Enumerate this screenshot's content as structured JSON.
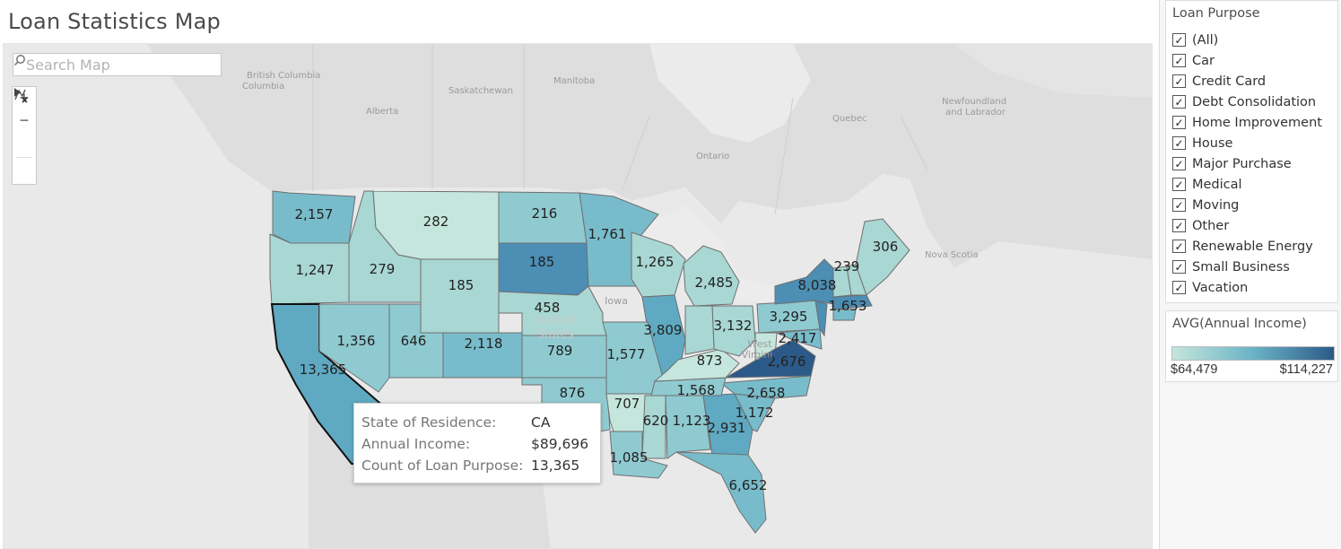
{
  "title": "Loan Statistics Map",
  "search": {
    "placeholder": "Search Map"
  },
  "map_tools": [
    {
      "name": "zoom-in-icon",
      "glyph": "+"
    },
    {
      "name": "zoom-out-icon",
      "glyph": "−"
    },
    {
      "name": "reset-map-icon",
      "glyph": "⌖"
    },
    {
      "name": "expand-toolbar-icon",
      "glyph": "▸"
    }
  ],
  "basemap_labels": [
    "British Columbia",
    "Alberta",
    "Saskatchewan",
    "Manitoba",
    "Ontario",
    "Quebec",
    "Newfoundland and Labrador",
    "Nova Scotia",
    "Iowa",
    "United States",
    "West Virginia"
  ],
  "states": [
    {
      "state": "WA",
      "count": 2157,
      "label": "2,157"
    },
    {
      "state": "OR",
      "count": 1247,
      "label": "1,247"
    },
    {
      "state": "CA",
      "count": 13365,
      "label": "13,365"
    },
    {
      "state": "NV",
      "count": 1356,
      "label": "1,356"
    },
    {
      "state": "ID",
      "count": 279,
      "label": "279"
    },
    {
      "state": "MT",
      "count": 282,
      "label": "282"
    },
    {
      "state": "WY",
      "count": 185,
      "label": "185"
    },
    {
      "state": "UT",
      "count": 646,
      "label": "646"
    },
    {
      "state": "CO",
      "count": 2118,
      "label": "2,118"
    },
    {
      "state": "ND",
      "count": 216,
      "label": "216"
    },
    {
      "state": "SD",
      "count": 185,
      "label": "185"
    },
    {
      "state": "NE",
      "count": 458,
      "label": "458"
    },
    {
      "state": "KS",
      "count": 789,
      "label": "789"
    },
    {
      "state": "OK",
      "count": 876,
      "label": "876"
    },
    {
      "state": "MN",
      "count": 1761,
      "label": "1,761"
    },
    {
      "state": "WI",
      "count": 1265,
      "label": "1,265"
    },
    {
      "state": "MI",
      "count": 2485,
      "label": "2,485"
    },
    {
      "state": "IL",
      "count": 3809,
      "label": "3,809"
    },
    {
      "state": "MO",
      "count": 1577,
      "label": "1,577"
    },
    {
      "state": "AR",
      "count": 707,
      "label": "707"
    },
    {
      "state": "MS",
      "count": 620,
      "label": "620"
    },
    {
      "state": "LA",
      "count": 1085,
      "label": "1,085"
    },
    {
      "state": "AL",
      "count": 1123,
      "label": "1,123"
    },
    {
      "state": "GA",
      "count": 2931,
      "label": "2,931"
    },
    {
      "state": "FL",
      "count": 6652,
      "label": "6,652"
    },
    {
      "state": "SC",
      "count": 1172,
      "label": "1,172"
    },
    {
      "state": "NC",
      "count": 2658,
      "label": "2,658"
    },
    {
      "state": "TN",
      "count": 1568,
      "label": "1,568"
    },
    {
      "state": "KY",
      "count": 873,
      "label": "873"
    },
    {
      "state": "OH",
      "count": 3132,
      "label": "3,132"
    },
    {
      "state": "PA",
      "count": 3295,
      "label": "3,295"
    },
    {
      "state": "VA",
      "count": 2676,
      "label": "2,676"
    },
    {
      "state": "MD",
      "count": 2417,
      "label": "2,417"
    },
    {
      "state": "NY",
      "count": 8038,
      "label": "8,038"
    },
    {
      "state": "MA",
      "count": 1653,
      "label": "1,653"
    },
    {
      "state": "VT",
      "count": 239,
      "label": "239"
    },
    {
      "state": "ME",
      "count": 306,
      "label": "306"
    }
  ],
  "tooltip": {
    "state_label": "State of Residence:",
    "state_value": "CA",
    "income_label": "Annual Income:",
    "income_value": "$89,696",
    "count_label": "Count of Loan Purpose:",
    "count_value": "13,365"
  },
  "filter": {
    "title": "Loan Purpose",
    "items": [
      {
        "label": "(All)",
        "checked": true
      },
      {
        "label": "Car",
        "checked": true
      },
      {
        "label": "Credit Card",
        "checked": true
      },
      {
        "label": "Debt Consolidation",
        "checked": true
      },
      {
        "label": "Home Improvement",
        "checked": true
      },
      {
        "label": "House",
        "checked": true
      },
      {
        "label": "Major Purchase",
        "checked": true
      },
      {
        "label": "Medical",
        "checked": true
      },
      {
        "label": "Moving",
        "checked": true
      },
      {
        "label": "Other",
        "checked": true
      },
      {
        "label": "Renewable Energy",
        "checked": true
      },
      {
        "label": "Small Business",
        "checked": true
      },
      {
        "label": "Vacation",
        "checked": true
      }
    ]
  },
  "legend": {
    "title": "AVG(Annual Income)",
    "min_label": "$64,479",
    "max_label": "$114,227",
    "color_min": "#c5e6dc",
    "color_mid": "#6bb3c6",
    "color_max": "#2c5a88"
  },
  "colors": {
    "land": "#dcdcdc",
    "water": "#e9e9e9",
    "border": "#8a8a8a",
    "shade_lightest": "#c5e6dc",
    "shade_light": "#a9d7d3",
    "shade_mid": "#8fcad1",
    "shade_medium": "#78bccb",
    "shade_strong": "#5fa9c3",
    "shade_darker": "#4c8eb4",
    "shade_darkest": "#2c5a88",
    "no_data": "#e9e9e9"
  }
}
